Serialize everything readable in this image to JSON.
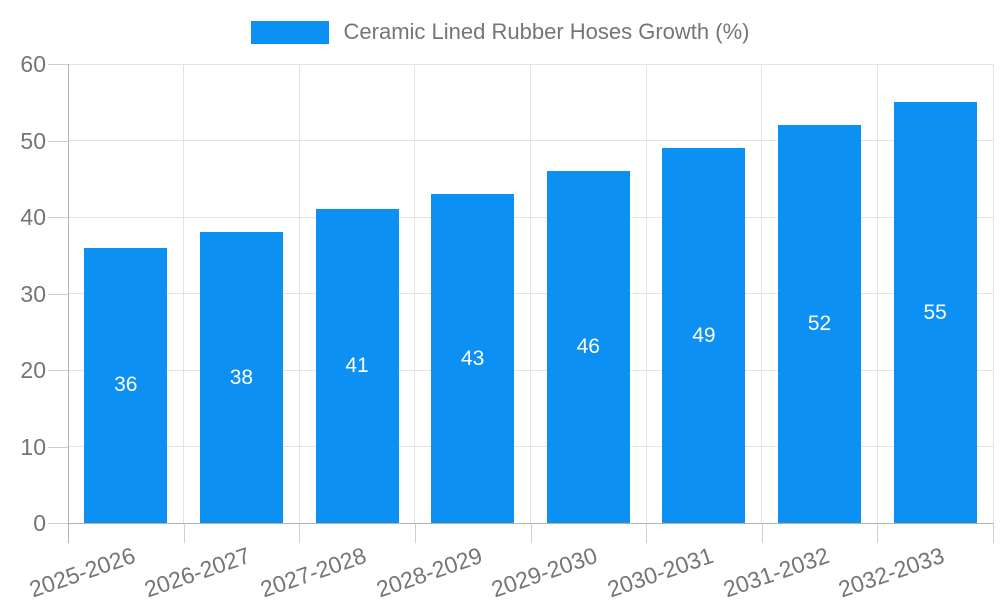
{
  "legend": {
    "label": "Ceramic Lined Rubber Hoses Growth (%)"
  },
  "chart_data": {
    "type": "bar",
    "legend_entries": [
      "Ceramic Lined Rubber Hoses Growth (%)"
    ],
    "legend_position": "top-center",
    "categories": [
      "2025-2026",
      "2026-2027",
      "2027-2028",
      "2028-2029",
      "2029-2030",
      "2030-2031",
      "2031-2032",
      "2032-2033"
    ],
    "values": [
      36,
      38,
      41,
      43,
      46,
      49,
      52,
      55
    ],
    "value_labels_shown": true,
    "xlabel": "",
    "ylabel": "",
    "ylim": [
      0,
      60
    ],
    "yticks": [
      0,
      10,
      20,
      30,
      40,
      50,
      60
    ],
    "grid": true,
    "x_label_rotation_deg": -19,
    "colors": {
      "bar": "#0c90f3",
      "value_label": "#ffffff",
      "axis_text": "#757575",
      "gridline": "#e3e3e3",
      "axis_line": "#b3b3b3"
    }
  }
}
